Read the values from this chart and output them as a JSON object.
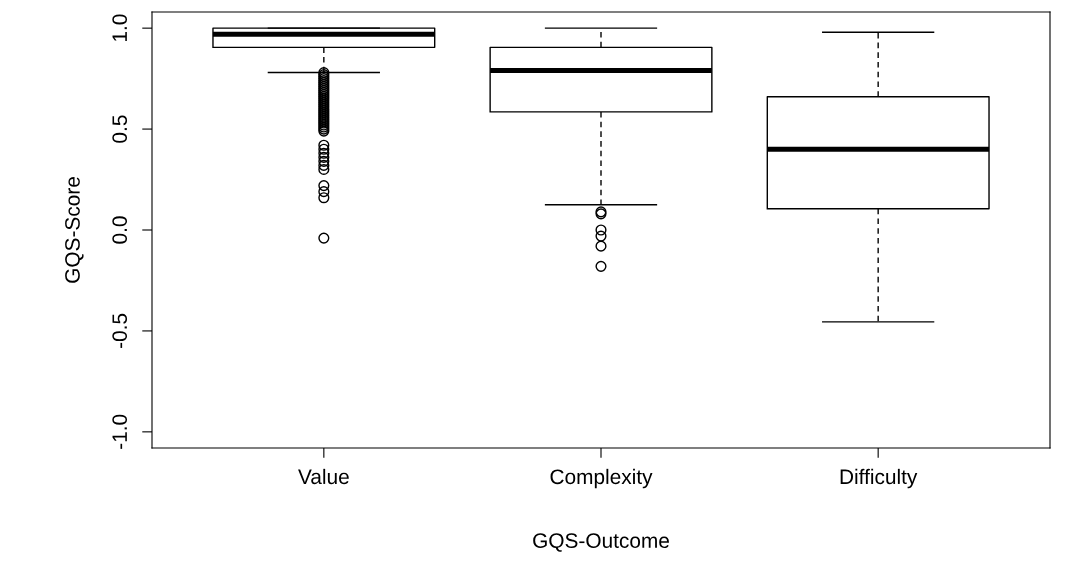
{
  "chart_data": {
    "type": "box",
    "xlabel": "GQS-Outcome",
    "ylabel": "GQS-Score",
    "categories": [
      "Value",
      "Complexity",
      "Difficulty"
    ],
    "boxes": [
      {
        "low": 0.78,
        "q1": 0.905,
        "median": 0.97,
        "q3": 1.0,
        "high": 1.0,
        "outliers": [
          0.78,
          0.77,
          0.76,
          0.75,
          0.74,
          0.73,
          0.72,
          0.71,
          0.7,
          0.69,
          0.68,
          0.67,
          0.66,
          0.65,
          0.64,
          0.63,
          0.62,
          0.61,
          0.6,
          0.59,
          0.58,
          0.57,
          0.56,
          0.55,
          0.54,
          0.53,
          0.52,
          0.51,
          0.5,
          0.49,
          0.42,
          0.4,
          0.38,
          0.36,
          0.34,
          0.32,
          0.3,
          0.22,
          0.19,
          0.16,
          -0.04
        ]
      },
      {
        "low": 0.125,
        "q1": 0.585,
        "median": 0.79,
        "q3": 0.905,
        "high": 1.0,
        "outliers": [
          0.09,
          0.08,
          0.0,
          -0.03,
          -0.08,
          -0.18
        ]
      },
      {
        "low": -0.455,
        "q1": 0.105,
        "median": 0.4,
        "q3": 0.66,
        "high": 0.98
      }
    ],
    "ylim": [
      -1.08,
      1.08
    ],
    "yticks": [
      {
        "value": -1.0,
        "label": "-1.0"
      },
      {
        "value": -0.5,
        "label": "-0.5"
      },
      {
        "value": 0.0,
        "label": "0.0"
      },
      {
        "value": 0.5,
        "label": "0.5"
      },
      {
        "value": 1.0,
        "label": "1.0"
      }
    ],
    "grid": false,
    "legend": false
  }
}
